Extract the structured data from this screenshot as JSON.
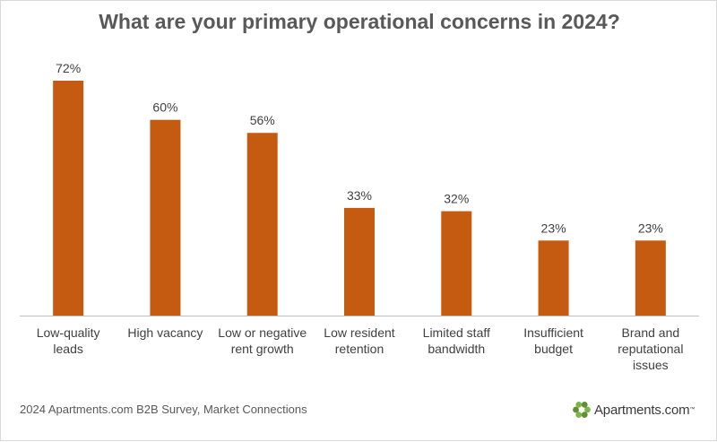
{
  "title": "What are your primary operational concerns in 2024?",
  "source": "2024 Apartments.com B2B Survey, Market Connections",
  "logo": {
    "text": "Apartments.com",
    "tm": "™",
    "icon": "apartments-logo-icon",
    "colors": [
      "#7ab648",
      "#5f8f2f"
    ]
  },
  "chart_data": {
    "type": "bar",
    "title": "What are your primary operational concerns in 2024?",
    "categories": [
      [
        "Low-quality",
        "leads"
      ],
      [
        "High vacancy"
      ],
      [
        "Low or negative",
        "rent growth"
      ],
      [
        "Low resident",
        "retention"
      ],
      [
        "Limited staff",
        "bandwidth"
      ],
      [
        "Insufficient",
        "budget"
      ],
      [
        "Brand and",
        "reputational",
        "issues"
      ]
    ],
    "values": [
      72,
      60,
      56,
      33,
      32,
      23,
      23
    ],
    "value_labels": [
      "72%",
      "60%",
      "56%",
      "33%",
      "32%",
      "23%",
      "23%"
    ],
    "ylim": [
      0,
      72
    ],
    "bar_color": "#c55a11",
    "axis_color": "#bfbfbf",
    "grid": false,
    "legend": "none"
  }
}
